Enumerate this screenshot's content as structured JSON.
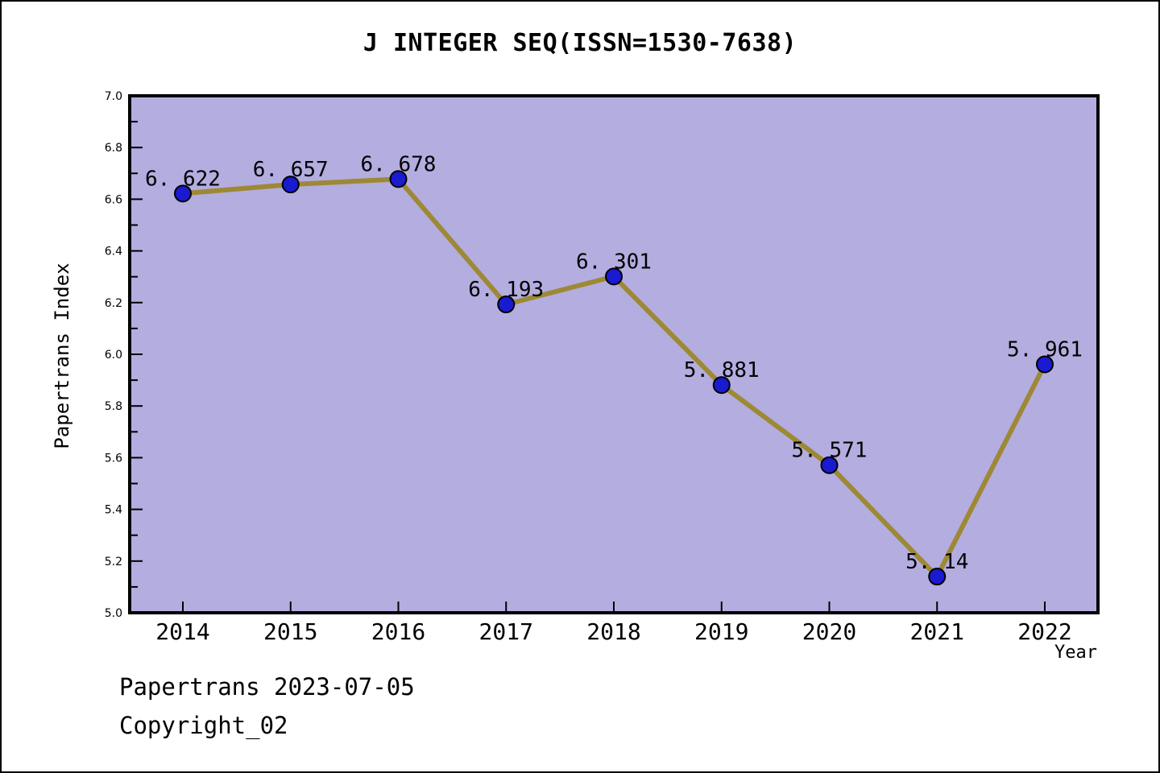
{
  "footer": {
    "line1": "Papertrans 2023-07-05",
    "line2": "Copyright_02"
  },
  "chart_data": {
    "type": "line",
    "title": "J INTEGER SEQ(ISSN=1530-7638)",
    "xlabel": "Year",
    "ylabel": "Papertrans Index",
    "x": [
      2014,
      2015,
      2016,
      2017,
      2018,
      2019,
      2020,
      2021,
      2022
    ],
    "x_tick_labels": [
      "2014",
      "2015",
      "2016",
      "2017",
      "2018",
      "2019",
      "2020",
      "2021",
      "2022"
    ],
    "values": [
      6.622,
      6.657,
      6.678,
      6.193,
      6.301,
      5.881,
      5.571,
      5.14,
      5.961
    ],
    "point_labels": [
      "6. 622",
      "6. 657",
      "6. 678",
      "6. 193",
      "6. 301",
      "5. 881",
      "5. 571",
      "5. 14",
      "5. 961"
    ],
    "ylim": [
      5.0,
      7.0
    ],
    "y_tick_labels": [
      "5.0",
      "5.2",
      "5.4",
      "5.6",
      "5.8",
      "6.0",
      "6.2",
      "6.4",
      "6.6",
      "6.8",
      "7.0"
    ],
    "y_minor_step": 0.1,
    "grid": false,
    "legend": null,
    "colors": {
      "plot_bg": "#b4ade0",
      "line": "#9d8935",
      "marker": "#1a1ad0",
      "marker_edge": "#000000",
      "axis": "#000000",
      "text": "#000000"
    }
  }
}
